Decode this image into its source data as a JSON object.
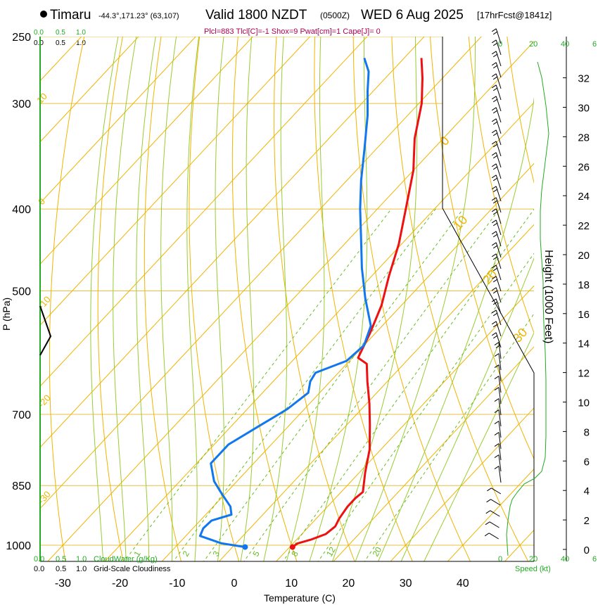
{
  "header": {
    "station": "Timaru",
    "coords": "-44.3°,171.23° (63,107)",
    "valid_main": "Valid 1800 NZDT",
    "valid_utc": "(0500Z)",
    "date": "WED 6 Aug 2025",
    "forecast": "[17hrFcst@1841z]",
    "params": "Plcl=883 Tlcl[C]=-1 Shox=9 Pwat[cm]=1 Cape[J]= 0"
  },
  "colors": {
    "isotherm": "#f0b400",
    "dry_adiabat": "#f0b400",
    "moist_adiabat": "#99cc33",
    "mixing_ratio": "#66bb22",
    "temperature": "#ee1111",
    "dewpoint": "#1177ee",
    "green_text": "#22aa22",
    "params_text": "#aa0055"
  },
  "labels": {
    "y_axis": "P (hPa)",
    "x_axis": "Temperature (C)",
    "right_axis": "Height (1000 Feet)",
    "speed_label": "Speed (kt)",
    "cloud_water": "CloudWater (g/Kg)",
    "cloudiness": "Grid-Scale Cloudiness",
    "cw_ticks": [
      "0.0",
      "0.5",
      "1.0"
    ],
    "cl_ticks": [
      "0.0",
      "0.5",
      "1.0"
    ],
    "speed_ticks": [
      "0",
      "20",
      "40",
      "6"
    ]
  },
  "chart_data": {
    "type": "line",
    "title": "Skew-T log-P sounding, Timaru",
    "xlabel": "Temperature (C)",
    "ylabel": "P (hPa)",
    "xlim": [
      -35,
      50
    ],
    "pressure_ticks": [
      250,
      300,
      400,
      500,
      700,
      850,
      1000
    ],
    "temp_ticks": [
      -30,
      -20,
      -10,
      0,
      10,
      20,
      30,
      40
    ],
    "height_ticks": [
      0,
      2,
      4,
      6,
      8,
      10,
      12,
      14,
      16,
      18,
      20,
      22,
      24,
      26,
      28,
      30,
      32
    ],
    "isotherm_labels": [
      {
        "t": 10,
        "text": "10"
      },
      {
        "t": 0,
        "text": "0"
      },
      {
        "t": -10,
        "text": "-10"
      },
      {
        "t": -20,
        "text": "-20"
      },
      {
        "t": -30,
        "text": "-30"
      },
      {
        "t": 0,
        "text": "0",
        "edge": "right"
      },
      {
        "t": 10,
        "text": "10",
        "edge": "right"
      },
      {
        "t": 20,
        "text": "20",
        "edge": "right"
      },
      {
        "t": 30,
        "text": "30",
        "edge": "right"
      }
    ],
    "mixing_ratio_labels": [
      "1",
      "2",
      "3",
      "5",
      "8",
      "12",
      "20"
    ],
    "series": [
      {
        "name": "Temperature",
        "points": [
          [
            10.5,
            1005
          ],
          [
            10.8,
            995
          ],
          [
            12.5,
            985
          ],
          [
            14.2,
            970
          ],
          [
            14.6,
            950
          ],
          [
            14.0,
            930
          ],
          [
            13.5,
            900
          ],
          [
            13.5,
            880
          ],
          [
            13.8,
            865
          ],
          [
            11.0,
            820
          ],
          [
            8.0,
            770
          ],
          [
            4.0,
            720
          ],
          [
            0.5,
            680
          ],
          [
            -3.5,
            640
          ],
          [
            -6.5,
            610
          ],
          [
            -9.0,
            600
          ],
          [
            -11.0,
            560
          ],
          [
            -13.5,
            520
          ],
          [
            -17.0,
            480
          ],
          [
            -20.5,
            440
          ],
          [
            -25.0,
            400
          ],
          [
            -30.0,
            360
          ],
          [
            -35.0,
            330
          ],
          [
            -39.5,
            300
          ],
          [
            -43.5,
            280
          ],
          [
            -47.0,
            265
          ]
        ]
      },
      {
        "name": "Dewpoint",
        "points": [
          [
            2.2,
            1005
          ],
          [
            -2.5,
            995
          ],
          [
            -7.5,
            975
          ],
          [
            -8.2,
            955
          ],
          [
            -8.0,
            935
          ],
          [
            -5.5,
            920
          ],
          [
            -7.0,
            900
          ],
          [
            -10.5,
            870
          ],
          [
            -14.0,
            840
          ],
          [
            -17.5,
            800
          ],
          [
            -17.5,
            760
          ],
          [
            -15.0,
            720
          ],
          [
            -13.0,
            690
          ],
          [
            -12.0,
            660
          ],
          [
            -13.5,
            640
          ],
          [
            -14.0,
            625
          ],
          [
            -10.5,
            605
          ],
          [
            -10.0,
            580
          ],
          [
            -12.0,
            550
          ],
          [
            -17.5,
            510
          ],
          [
            -23.0,
            470
          ],
          [
            -28.5,
            430
          ],
          [
            -33.0,
            400
          ],
          [
            -37.5,
            370
          ],
          [
            -42.0,
            340
          ],
          [
            -47.0,
            310
          ],
          [
            -51.0,
            290
          ],
          [
            -54.0,
            275
          ],
          [
            -57.0,
            265
          ]
        ]
      }
    ],
    "surface_temperature": 10.5,
    "surface_dewpoint": 2.2
  }
}
